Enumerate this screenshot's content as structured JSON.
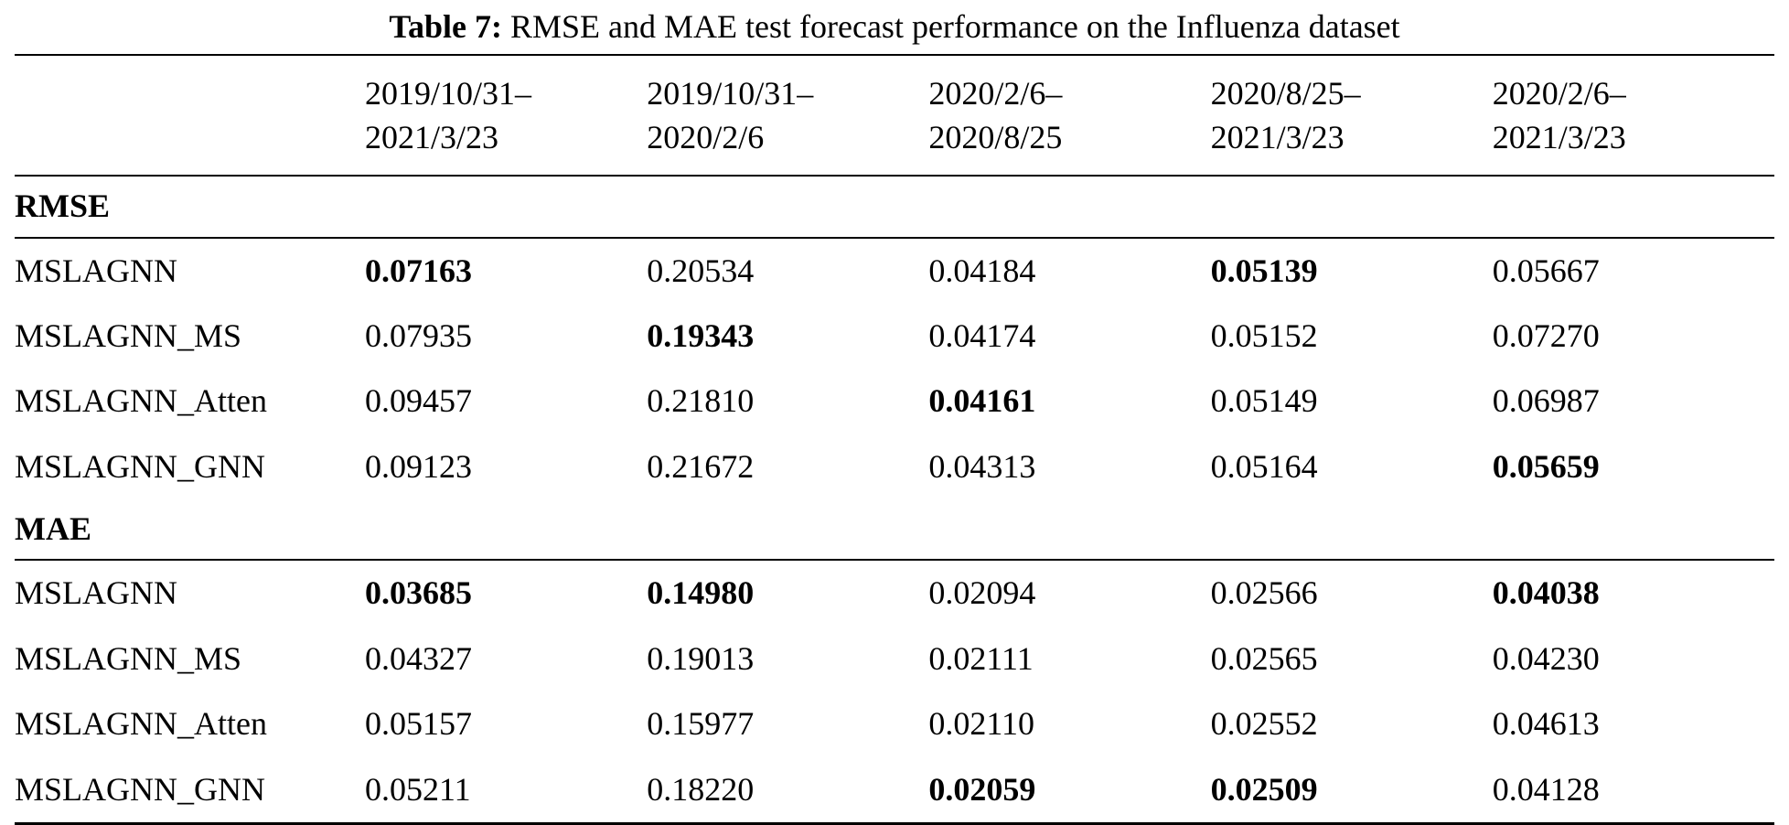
{
  "caption": {
    "label": "Table 7:",
    "text": "RMSE and MAE test forecast performance on the Influenza dataset"
  },
  "table": {
    "column_headers": [
      {
        "line1": "2019/10/31–",
        "line2": "2021/3/23"
      },
      {
        "line1": "2019/10/31–",
        "line2": "2020/2/6"
      },
      {
        "line1": "2020/2/6–",
        "line2": "2020/8/25"
      },
      {
        "line1": "2020/8/25–",
        "line2": "2021/3/23"
      },
      {
        "line1": "2020/2/6–",
        "line2": "2021/3/23"
      }
    ],
    "sections": [
      {
        "label": "RMSE",
        "rows": [
          {
            "model": "MSLAGNN",
            "values": [
              "0.07163",
              "0.20534",
              "0.04184",
              "0.05139",
              "0.05667"
            ],
            "bold": [
              true,
              false,
              false,
              true,
              false
            ]
          },
          {
            "model": "MSLAGNN_MS",
            "values": [
              "0.07935",
              "0.19343",
              "0.04174",
              "0.05152",
              "0.07270"
            ],
            "bold": [
              false,
              true,
              false,
              false,
              false
            ]
          },
          {
            "model": "MSLAGNN_Atten",
            "values": [
              "0.09457",
              "0.21810",
              "0.04161",
              "0.05149",
              "0.06987"
            ],
            "bold": [
              false,
              false,
              true,
              false,
              false
            ]
          },
          {
            "model": "MSLAGNN_GNN",
            "values": [
              "0.09123",
              "0.21672",
              "0.04313",
              "0.05164",
              "0.05659"
            ],
            "bold": [
              false,
              false,
              false,
              false,
              true
            ]
          }
        ]
      },
      {
        "label": "MAE",
        "rows": [
          {
            "model": "MSLAGNN",
            "values": [
              "0.03685",
              "0.14980",
              "0.02094",
              "0.02566",
              "0.04038"
            ],
            "bold": [
              true,
              true,
              false,
              false,
              true
            ]
          },
          {
            "model": "MSLAGNN_MS",
            "values": [
              "0.04327",
              "0.19013",
              "0.02111",
              "0.02565",
              "0.04230"
            ],
            "bold": [
              false,
              false,
              false,
              false,
              false
            ]
          },
          {
            "model": "MSLAGNN_Atten",
            "values": [
              "0.05157",
              "0.15977",
              "0.02110",
              "0.02552",
              "0.04613"
            ],
            "bold": [
              false,
              false,
              false,
              false,
              false
            ]
          },
          {
            "model": "MSLAGNN_GNN",
            "values": [
              "0.05211",
              "0.18220",
              "0.02059",
              "0.02509",
              "0.04128"
            ],
            "bold": [
              false,
              false,
              true,
              true,
              false
            ]
          }
        ]
      }
    ]
  }
}
